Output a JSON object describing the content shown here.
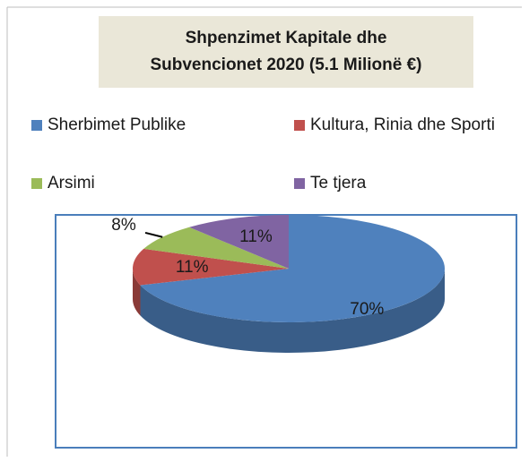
{
  "chart_data": {
    "type": "pie",
    "title": "Shpenzimet Kapitale dhe Subvencionet 2020 (5.1 Milionë €)",
    "categories": [
      "Sherbimet Publike",
      "Kultura, Rinia dhe Sporti",
      "Arsimi",
      "Te tjera"
    ],
    "values": [
      70,
      11,
      8,
      11
    ],
    "value_labels": [
      "70%",
      "11%",
      "8%",
      "11%"
    ],
    "colors": [
      "#4f81bd",
      "#c0504d",
      "#9bbb59",
      "#8064a2"
    ],
    "legend": "top"
  }
}
